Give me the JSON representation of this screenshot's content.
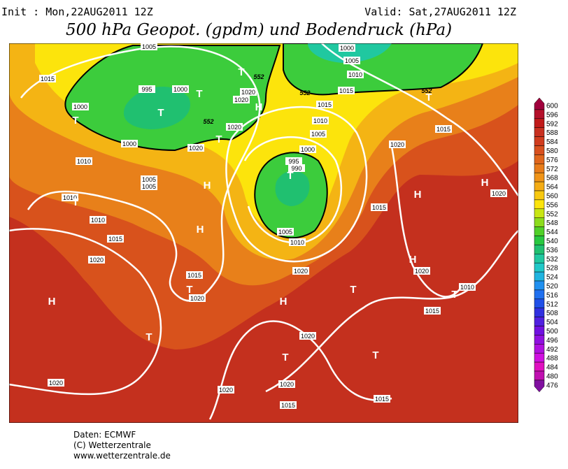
{
  "header": {
    "init": "Init : Mon,22AUG2011 12Z",
    "valid": "Valid: Sat,27AUG2011 12Z",
    "title": "500 hPa Geopot. (gpdm) und Bodendruck (hPa)"
  },
  "colorbar": {
    "levels": [
      {
        "value": 600,
        "color": "#a0003c"
      },
      {
        "value": 596,
        "color": "#b4102a"
      },
      {
        "value": 592,
        "color": "#c01a1a"
      },
      {
        "value": 588,
        "color": "#c83020"
      },
      {
        "value": 584,
        "color": "#d03c1e"
      },
      {
        "value": 580,
        "color": "#d8501e"
      },
      {
        "value": 576,
        "color": "#e0661c"
      },
      {
        "value": 572,
        "color": "#e87c1a"
      },
      {
        "value": 568,
        "color": "#f09418"
      },
      {
        "value": 564,
        "color": "#f4ac14"
      },
      {
        "value": 560,
        "color": "#f8c810"
      },
      {
        "value": 556,
        "color": "#fce40c"
      },
      {
        "value": 552,
        "color": "#c8e614"
      },
      {
        "value": 548,
        "color": "#8cdc1c"
      },
      {
        "value": 544,
        "color": "#50d028"
      },
      {
        "value": 540,
        "color": "#28c840"
      },
      {
        "value": 536,
        "color": "#20c070"
      },
      {
        "value": 532,
        "color": "#20c8a0"
      },
      {
        "value": 528,
        "color": "#20c8c8"
      },
      {
        "value": 524,
        "color": "#20b4e0"
      },
      {
        "value": 520,
        "color": "#2090f0"
      },
      {
        "value": 516,
        "color": "#2070f0"
      },
      {
        "value": 512,
        "color": "#2050e8"
      },
      {
        "value": 508,
        "color": "#3030e0"
      },
      {
        "value": 504,
        "color": "#5020e0"
      },
      {
        "value": 500,
        "color": "#7010e0"
      },
      {
        "value": 496,
        "color": "#9010e0"
      },
      {
        "value": 492,
        "color": "#b010e0"
      },
      {
        "value": 488,
        "color": "#d010e0"
      },
      {
        "value": 484,
        "color": "#e010c0"
      },
      {
        "value": 480,
        "color": "#c010b0"
      },
      {
        "value": 476,
        "color": "#8010a0"
      }
    ]
  },
  "map": {
    "isobar_labels": [
      1005,
      1015,
      995,
      1000,
      1000,
      1020,
      1020,
      1000,
      1020,
      1020,
      1010,
      1005,
      1005,
      1010,
      1010,
      1015,
      1020,
      1015,
      1020,
      1020,
      1020,
      1000,
      1005,
      1010,
      1015,
      1015,
      1010,
      1005,
      1000,
      995,
      990,
      1005,
      1010,
      1020,
      1015,
      1020,
      1015,
      1020,
      1020,
      1010,
      1015,
      1020,
      1020,
      1015,
      1015
    ],
    "contour_labels": [
      552,
      552,
      552,
      552
    ],
    "highs": [
      "H",
      "H",
      "H",
      "H",
      "H",
      "H",
      "H",
      "H"
    ],
    "lows": [
      "T",
      "T",
      "T",
      "T",
      "T",
      "T",
      "T",
      "T",
      "T",
      "T",
      "T",
      "T",
      "T",
      "T"
    ]
  },
  "footer": {
    "source": "Daten: ECMWF",
    "copyright": "(C) Wetterzentrale",
    "url": "www.wetterzentrale.de"
  }
}
